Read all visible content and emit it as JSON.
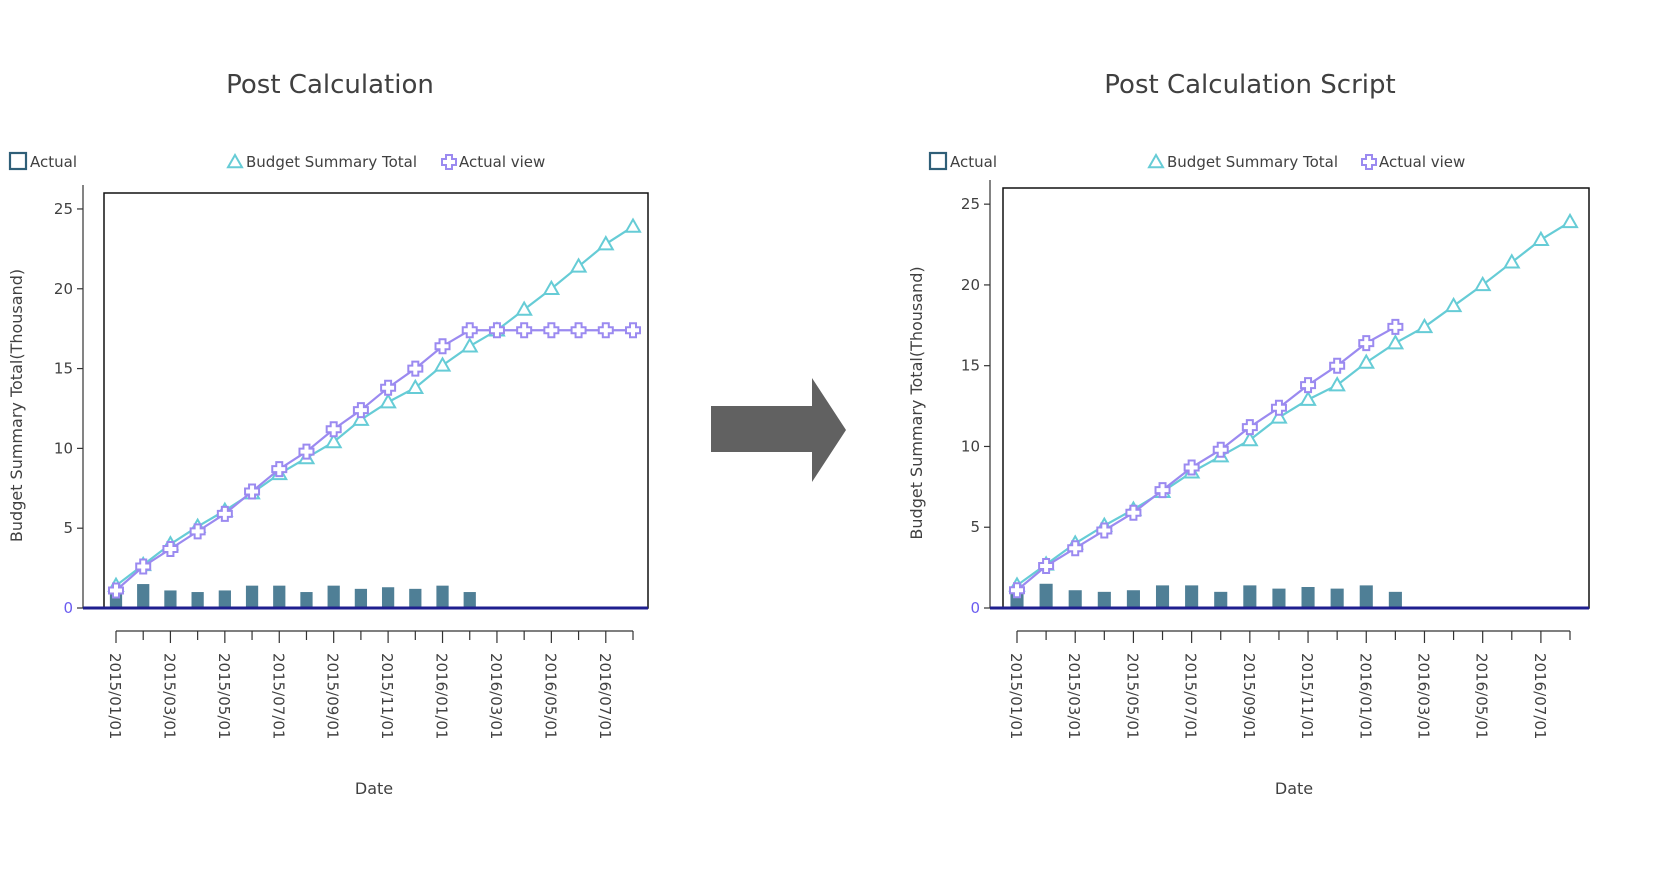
{
  "colors": {
    "actual": "#4f7f96",
    "actual_legend": "#2f5f78",
    "budget_summary_total": "#66ccd6",
    "actual_view": "#9b8af0",
    "zero_line": "#1f1f8f",
    "arrow": "#616161",
    "text": "#404040",
    "zero_label": "#6a5cf0"
  },
  "arrow": {
    "icon": "right-arrow-icon"
  },
  "chart_data": [
    {
      "type": "bar+line",
      "title": "Post Calculation",
      "xlabel": "Date",
      "ylabel": "Budget Summary Total(Thousand)",
      "ylim": [
        0,
        26
      ],
      "yticks": [
        "0",
        "5",
        "10",
        "15",
        "20",
        "25"
      ],
      "xtick_labels": [
        "2015/01/01",
        "2015/03/01",
        "2015/05/01",
        "2015/07/01",
        "2015/09/01",
        "2015/11/01",
        "2016/01/01",
        "2016/03/01",
        "2016/05/01",
        "2016/07/01"
      ],
      "x": [
        "2015/01",
        "2015/02",
        "2015/03",
        "2015/04",
        "2015/05",
        "2015/06",
        "2015/07",
        "2015/08",
        "2015/09",
        "2015/10",
        "2015/11",
        "2015/12",
        "2016/01",
        "2016/02",
        "2016/03",
        "2016/04",
        "2016/05",
        "2016/06",
        "2016/07",
        "2016/08"
      ],
      "legend": [
        "Actual",
        "Budget Summary Total",
        "Actual view"
      ],
      "series": [
        {
          "name": "Actual",
          "kind": "bar",
          "values": [
            1.1,
            1.5,
            1.1,
            1.0,
            1.1,
            1.4,
            1.4,
            1.0,
            1.4,
            1.2,
            1.3,
            1.2,
            1.4,
            1.0,
            null,
            null,
            null,
            null,
            null,
            null
          ]
        },
        {
          "name": "Budget Summary Total",
          "kind": "line",
          "marker": "triangle",
          "values": [
            1.4,
            2.7,
            4.0,
            5.1,
            6.1,
            7.2,
            8.4,
            9.4,
            10.4,
            11.8,
            12.9,
            13.8,
            15.2,
            16.4,
            17.4,
            18.7,
            20.0,
            21.4,
            22.8,
            23.9
          ]
        },
        {
          "name": "Actual view",
          "kind": "line",
          "marker": "cross",
          "values": [
            1.1,
            2.6,
            3.7,
            4.8,
            5.9,
            7.3,
            8.7,
            9.8,
            11.2,
            12.4,
            13.8,
            15.0,
            16.4,
            17.4,
            17.4,
            17.4,
            17.4,
            17.4,
            17.4,
            17.4
          ]
        }
      ]
    },
    {
      "type": "bar+line",
      "title": "Post Calculation Script",
      "xlabel": "Date",
      "ylabel": "Budget Summary Total(Thousand)",
      "ylim": [
        0,
        26
      ],
      "yticks": [
        "0",
        "5",
        "10",
        "15",
        "20",
        "25"
      ],
      "xtick_labels": [
        "2015/01/01",
        "2015/03/01",
        "2015/05/01",
        "2015/07/01",
        "2015/09/01",
        "2015/11/01",
        "2016/01/01",
        "2016/03/01",
        "2016/05/01",
        "2016/07/01"
      ],
      "x": [
        "2015/01",
        "2015/02",
        "2015/03",
        "2015/04",
        "2015/05",
        "2015/06",
        "2015/07",
        "2015/08",
        "2015/09",
        "2015/10",
        "2015/11",
        "2015/12",
        "2016/01",
        "2016/02",
        "2016/03",
        "2016/04",
        "2016/05",
        "2016/06",
        "2016/07",
        "2016/08"
      ],
      "legend": [
        "Actual",
        "Budget Summary Total",
        "Actual view"
      ],
      "series": [
        {
          "name": "Actual",
          "kind": "bar",
          "values": [
            1.1,
            1.5,
            1.1,
            1.0,
            1.1,
            1.4,
            1.4,
            1.0,
            1.4,
            1.2,
            1.3,
            1.2,
            1.4,
            1.0,
            null,
            null,
            null,
            null,
            null,
            null
          ]
        },
        {
          "name": "Budget Summary Total",
          "kind": "line",
          "marker": "triangle",
          "values": [
            1.4,
            2.7,
            4.0,
            5.1,
            6.1,
            7.2,
            8.4,
            9.4,
            10.4,
            11.8,
            12.9,
            13.8,
            15.2,
            16.4,
            17.4,
            18.7,
            20.0,
            21.4,
            22.8,
            23.9
          ]
        },
        {
          "name": "Actual view",
          "kind": "line",
          "marker": "cross",
          "values": [
            1.1,
            2.6,
            3.7,
            4.8,
            5.9,
            7.3,
            8.7,
            9.8,
            11.2,
            12.4,
            13.8,
            15.0,
            16.4,
            17.4,
            null,
            null,
            null,
            null,
            null,
            null
          ]
        }
      ]
    }
  ]
}
